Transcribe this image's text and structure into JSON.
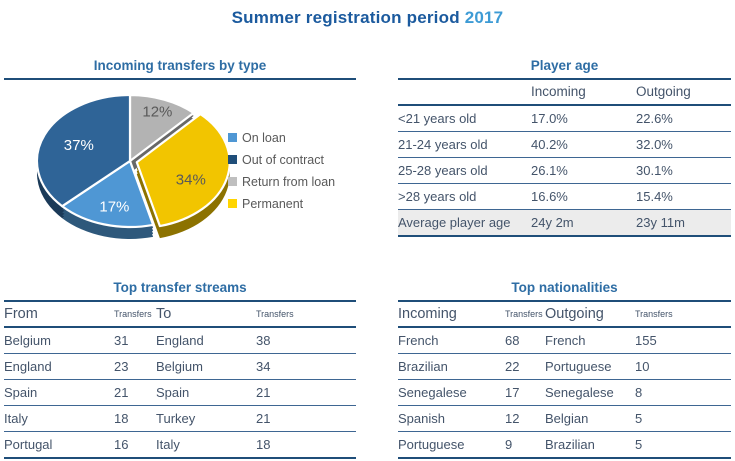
{
  "page": {
    "title_main": "Summer registration period",
    "title_year": "2017"
  },
  "colors": {
    "title_blue": "#1b5a9e",
    "year_blue": "#3d9bd5",
    "section_title_blue": "#2e6da4",
    "rule_navy": "#1f4e79",
    "rule_light": "#3e6692",
    "table_text": "#44546a",
    "legend_text": "#595959",
    "summary_row_bg": "#ececec"
  },
  "chart_data": {
    "type": "pie",
    "title": "Incoming transfers by type",
    "start_angle_deg": -90,
    "direction": "clockwise",
    "legend_position": "right",
    "style": "3d-exploded",
    "slices": [
      {
        "label": "Return from loan",
        "value": 12,
        "display": "12%",
        "color": "#b3b3b3",
        "label_color": "#595959",
        "exploded": false
      },
      {
        "label": "Permanent",
        "value": 34,
        "display": "34%",
        "color": "#f2c500",
        "label_color": "#595959",
        "exploded": true
      },
      {
        "label": "On loan",
        "value": 17,
        "display": "17%",
        "color": "#4f97d4",
        "label_color": "#ffffff",
        "exploded": false
      },
      {
        "label": "Out of contract",
        "value": 37,
        "display": "37%",
        "color": "#2f6497",
        "label_color": "#ffffff",
        "exploded": false
      }
    ],
    "legend": [
      {
        "label": "On loan",
        "color": "#4f97d4"
      },
      {
        "label": "Out of contract",
        "color": "#1f4e79"
      },
      {
        "label": "Return from loan",
        "color": "#bfbfbf"
      },
      {
        "label": "Permanent",
        "color": "#ffd500"
      }
    ]
  },
  "player_age": {
    "title": "Player age",
    "columns": [
      "",
      "Incoming",
      "Outgoing"
    ],
    "rows": [
      [
        "<21 years old",
        "17.0%",
        "22.6%"
      ],
      [
        "21-24 years old",
        "40.2%",
        "32.0%"
      ],
      [
        "25-28 years old",
        "26.1%",
        "30.1%"
      ],
      [
        ">28 years old",
        "16.6%",
        "15.4%"
      ]
    ],
    "summary_row": [
      "Average player age",
      "24y 2m",
      "23y 11m"
    ]
  },
  "transfer_streams": {
    "title": "Top transfer streams",
    "columns": [
      "From",
      "Transfers",
      "To",
      "Transfers"
    ],
    "rows": [
      [
        "Belgium",
        "31",
        "England",
        "38"
      ],
      [
        "England",
        "23",
        "Belgium",
        "34"
      ],
      [
        "Spain",
        "21",
        "Spain",
        "21"
      ],
      [
        "Italy",
        "18",
        "Turkey",
        "21"
      ],
      [
        "Portugal",
        "16",
        "Italy",
        "18"
      ]
    ]
  },
  "nationalities": {
    "title": "Top nationalities",
    "columns": [
      "Incoming",
      "Transfers",
      "Outgoing",
      "Transfers"
    ],
    "rows": [
      [
        "French",
        "68",
        "French",
        "155"
      ],
      [
        "Brazilian",
        "22",
        "Portuguese",
        "10"
      ],
      [
        "Senegalese",
        "17",
        "Senegalese",
        "8"
      ],
      [
        "Spanish",
        "12",
        "Belgian",
        "5"
      ],
      [
        "Portuguese",
        "9",
        "Brazilian",
        "5"
      ]
    ]
  }
}
